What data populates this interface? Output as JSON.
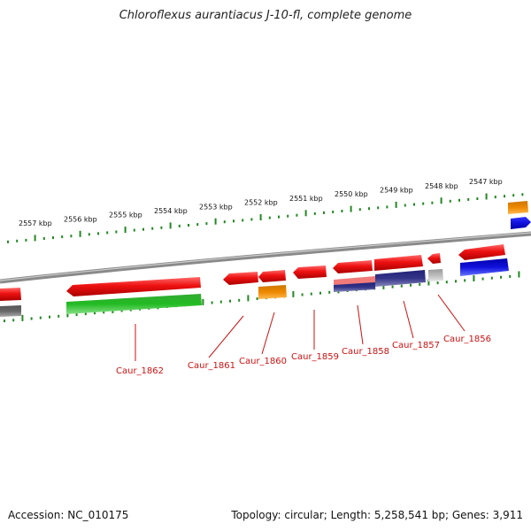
{
  "title": "Chloroflexus aurantiacus J-10-fl, complete genome",
  "footer": {
    "accession": "Accession: NC_010175",
    "topology": "Topology: circular; Length: 5,258,541 bp; Genes: 3,911"
  },
  "scale_labels": [
    "2557 kbp",
    "2556 kbp",
    "2555 kbp",
    "2554 kbp",
    "2553 kbp",
    "2552 kbp",
    "2551 kbp",
    "2550 kbp",
    "2549 kbp",
    "2548 kbp",
    "2547 kbp"
  ],
  "gene_labels": [
    "Caur_1862",
    "Caur_1861",
    "Caur_1860",
    "Caur_1859",
    "Caur_1858",
    "Caur_1857",
    "Caur_1856"
  ],
  "colors": {
    "forward_cds": "#ee1111",
    "reverse_cds": "#22bb22",
    "orange_feature": "#ee8800",
    "blue_feature": "#1111dd",
    "navy_feature": "#333388",
    "grey_feature": "#666666",
    "light_grey_feature": "#bbbbbb",
    "tick": "#228822",
    "backbone": "#888888",
    "label": "#cc1111"
  }
}
